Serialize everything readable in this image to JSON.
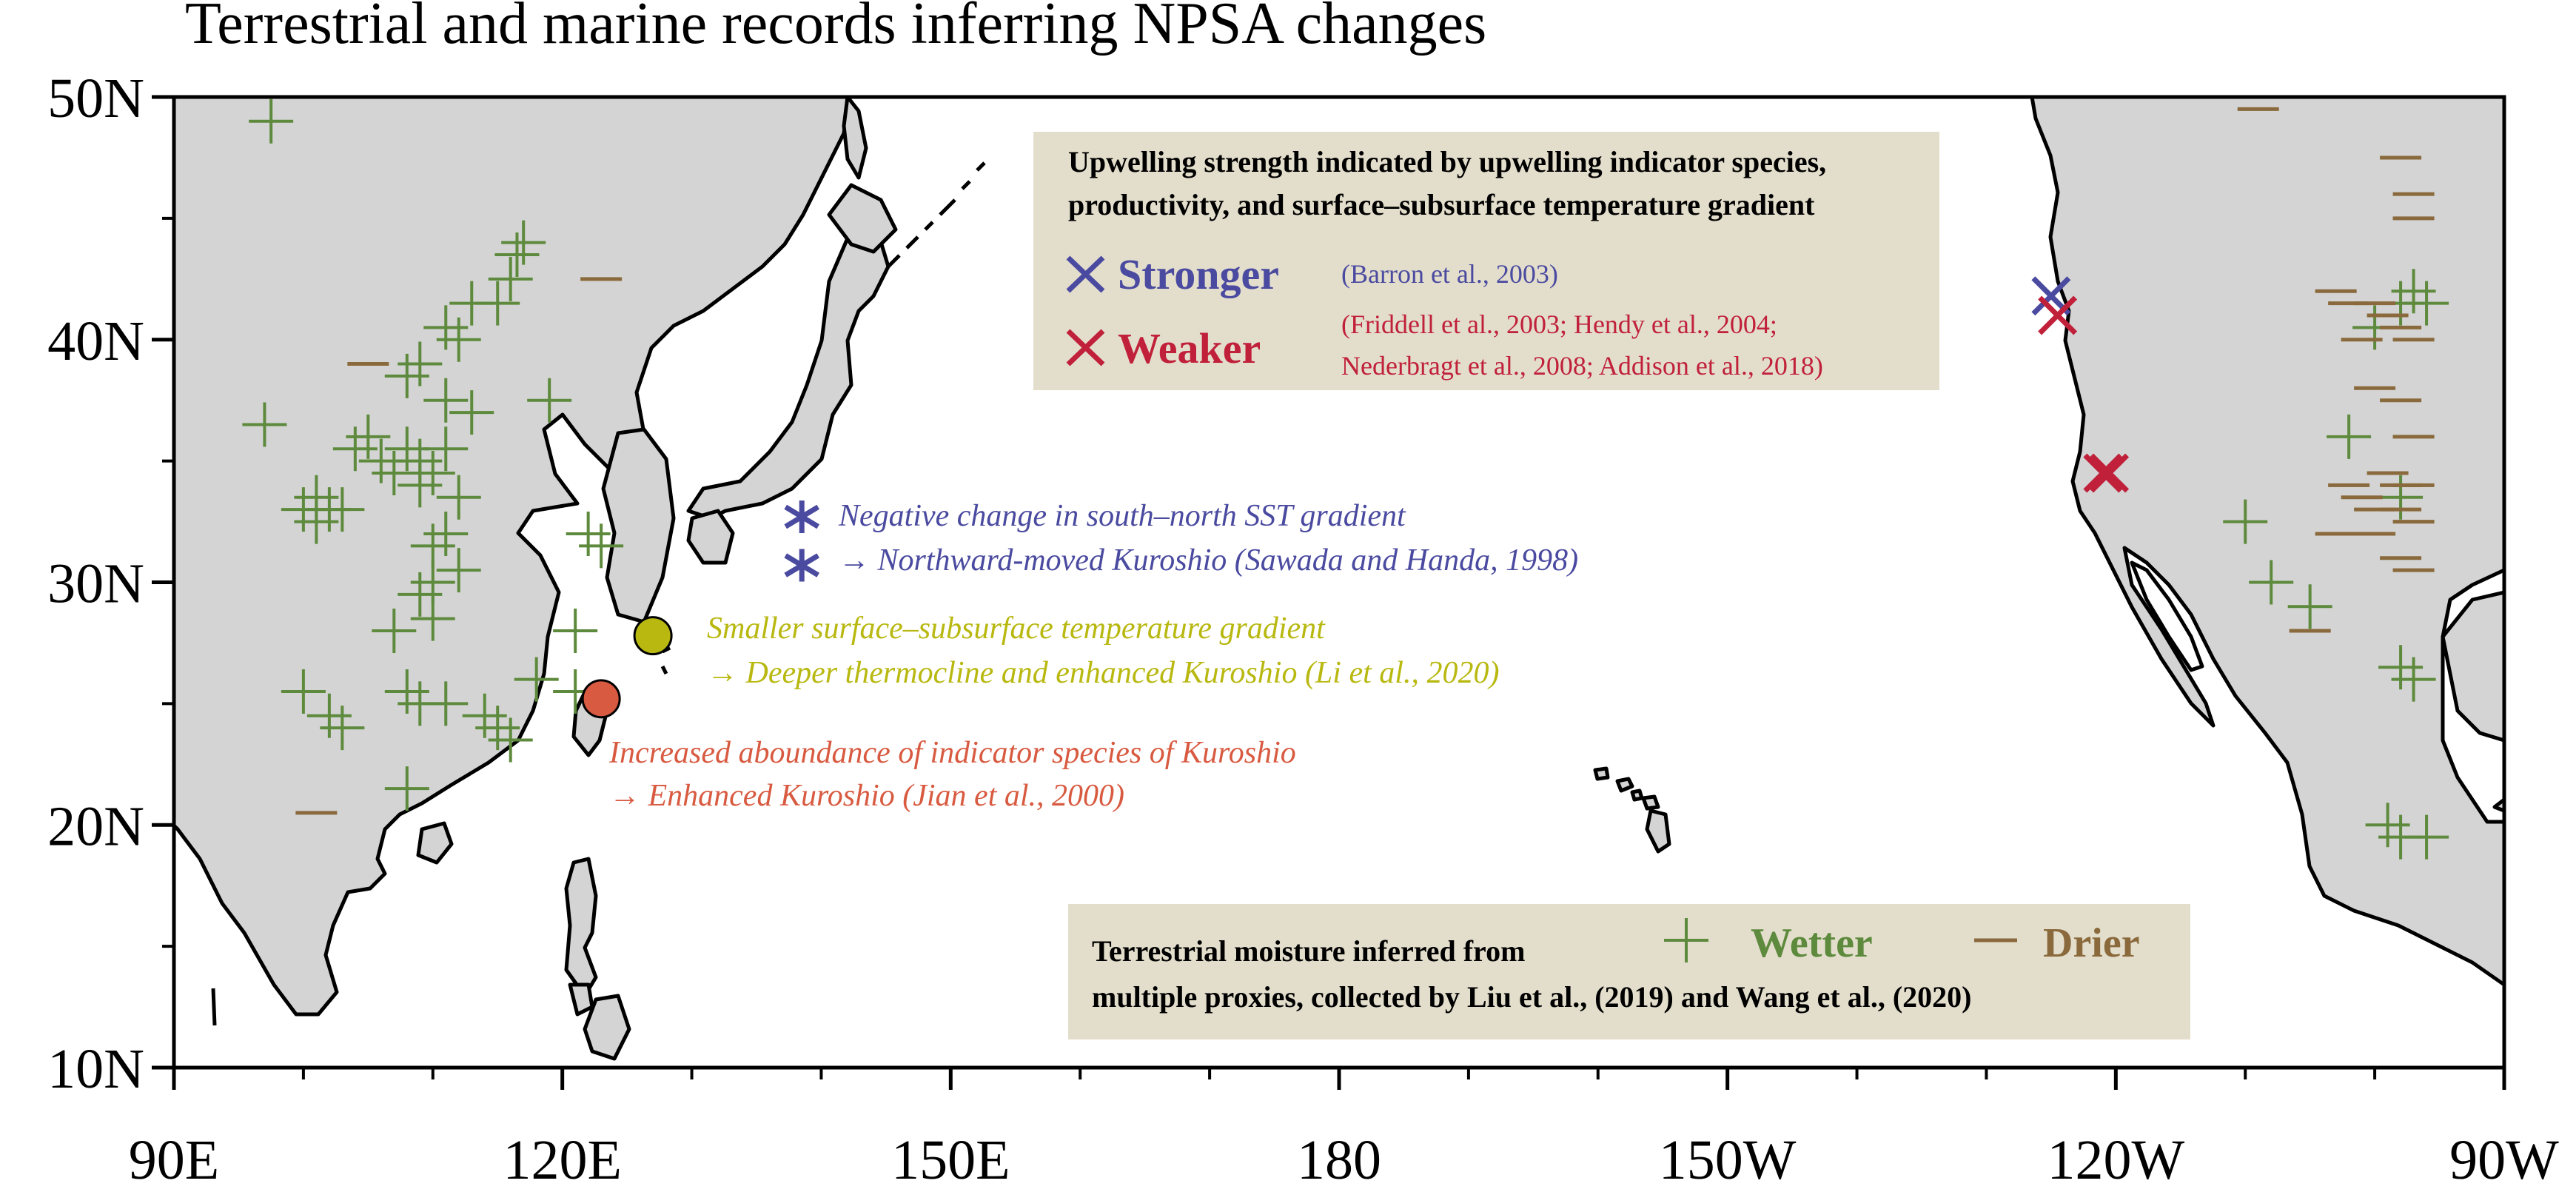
{
  "title": "Terrestrial and marine records inferring NPSA changes",
  "axes": {
    "x_ticks": [
      {
        "lon": 90,
        "label": "90E"
      },
      {
        "lon": 120,
        "label": "120E"
      },
      {
        "lon": 150,
        "label": "150E"
      },
      {
        "lon": 180,
        "label": "180"
      },
      {
        "lon": 210,
        "label": "150W"
      },
      {
        "lon": 240,
        "label": "120W"
      },
      {
        "lon": 270,
        "label": "90W"
      }
    ],
    "y_ticks": [
      {
        "lat": 50,
        "label": "50N"
      },
      {
        "lat": 40,
        "label": "40N"
      },
      {
        "lat": 30,
        "label": "30N"
      },
      {
        "lat": 20,
        "label": "20N"
      },
      {
        "lat": 10,
        "label": "10N"
      }
    ],
    "lon_range": [
      90,
      270
    ],
    "lat_range": [
      10,
      50
    ]
  },
  "colors": {
    "land": "#d4d4d4",
    "coast": "#000000",
    "wetter": "#5d8a3c",
    "drier": "#8a6a3c",
    "stronger": "#4a4aa0",
    "weaker": "#c0203a",
    "legend_box": "#e3decc",
    "li2020": "#b8b810",
    "jian2000": "#d85a40"
  },
  "upwelling_legend": {
    "title_line1": "Upwelling strength indicated by upwelling indicator species,",
    "title_line2": "productivity, and surface–subsurface temperature gradient",
    "stronger_label": "Stronger",
    "stronger_ref": "(Barron et al., 2003)",
    "weaker_label": "Weaker",
    "weaker_ref_line1": "(Friddell et al., 2003; Hendy et al., 2004;",
    "weaker_ref_line2": "Nederbragt et al., 2008; Addison et al., 2018)"
  },
  "moisture_legend": {
    "line1": "Terrestrial moisture inferred from",
    "line2": "multiple proxies, collected by Liu et al., (2019) and Wang et al., (2020)",
    "wetter_label": "Wetter",
    "drier_label": "Drier"
  },
  "annotations": {
    "sawada_line1": "Negative change in south–north SST gradient",
    "sawada_line2": "→ Northward-moved Kuroshio  (Sawada and Handa, 1998)",
    "li_line1": "Smaller surface–subsurface temperature gradient",
    "li_line2": "→ Deeper thermocline and enhanced Kuroshio (Li et al., 2020)",
    "jian_line1": "Increased aboundance of indicator species of Kuroshio",
    "jian_line2": "→ Enhanced Kuroshio (Jian et al., 2000)"
  },
  "markers": {
    "wetter": [
      [
        97.5,
        49
      ],
      [
        116.5,
        43.5
      ],
      [
        116,
        42.5
      ],
      [
        117,
        44
      ],
      [
        115,
        41.5
      ],
      [
        113,
        41.5
      ],
      [
        111,
        40.5
      ],
      [
        112,
        40
      ],
      [
        109,
        39
      ],
      [
        108,
        38.5
      ],
      [
        111,
        37.5
      ],
      [
        113,
        37
      ],
      [
        119,
        37.5
      ],
      [
        97,
        36.5
      ],
      [
        104,
        35.5
      ],
      [
        105,
        36
      ],
      [
        106,
        35
      ],
      [
        108,
        35.5
      ],
      [
        109,
        35
      ],
      [
        110,
        34.5
      ],
      [
        111,
        35.5
      ],
      [
        107,
        34.5
      ],
      [
        109,
        34
      ],
      [
        112,
        33.5
      ],
      [
        100,
        33
      ],
      [
        101,
        33.5
      ],
      [
        102,
        33
      ],
      [
        103,
        33
      ],
      [
        101,
        32.5
      ],
      [
        110,
        31.5
      ],
      [
        111,
        32
      ],
      [
        112,
        30.5
      ],
      [
        110,
        30
      ],
      [
        109,
        29.5
      ],
      [
        110,
        28.5
      ],
      [
        107,
        28
      ],
      [
        122,
        32
      ],
      [
        123,
        31.5
      ],
      [
        121,
        28
      ],
      [
        108,
        25.5
      ],
      [
        109,
        25
      ],
      [
        111,
        25
      ],
      [
        114,
        24.5
      ],
      [
        115,
        24
      ],
      [
        118,
        26
      ],
      [
        121,
        25.5
      ],
      [
        100,
        25.5
      ],
      [
        102,
        24.5
      ],
      [
        103,
        24
      ],
      [
        116,
        23.5
      ],
      [
        108,
        21.5
      ],
      [
        250,
        32.5
      ],
      [
        252,
        30
      ],
      [
        255,
        29
      ],
      [
        258,
        36
      ],
      [
        260,
        40.5
      ],
      [
        262,
        41.5
      ],
      [
        263,
        42
      ],
      [
        264,
        41.5
      ],
      [
        262,
        33.5
      ],
      [
        262,
        26.5
      ],
      [
        263,
        26
      ],
      [
        261,
        20
      ],
      [
        262,
        19.5
      ],
      [
        264,
        19.5
      ]
    ],
    "drier": [
      [
        105,
        39
      ],
      [
        123,
        42.5
      ],
      [
        101,
        20.5
      ],
      [
        251,
        49.5
      ],
      [
        262,
        47.5
      ],
      [
        263,
        46
      ],
      [
        263,
        45
      ],
      [
        257,
        42
      ],
      [
        258,
        41.5
      ],
      [
        260,
        41.5
      ],
      [
        261,
        41
      ],
      [
        262,
        40.5
      ],
      [
        263,
        40
      ],
      [
        259,
        40
      ],
      [
        260,
        38
      ],
      [
        262,
        37.5
      ],
      [
        263,
        36
      ],
      [
        258,
        34
      ],
      [
        259,
        33.5
      ],
      [
        260,
        33
      ],
      [
        261,
        34.5
      ],
      [
        262,
        34
      ],
      [
        263,
        34
      ],
      [
        262,
        33
      ],
      [
        263,
        32.5
      ],
      [
        257,
        32
      ],
      [
        260,
        32
      ],
      [
        262,
        31
      ],
      [
        263,
        30.5
      ],
      [
        255,
        28
      ]
    ],
    "stronger_x": [
      [
        235,
        41.8
      ]
    ],
    "weaker_x": [
      [
        235.5,
        41
      ],
      [
        239,
        34.5
      ],
      [
        239.5,
        34.5
      ]
    ],
    "sawada_asterisks": [
      [
        138.5,
        32.7
      ],
      [
        138.5,
        30.7
      ]
    ],
    "li_point": [
      127,
      27.8
    ],
    "jian_point": [
      123,
      25.2
    ]
  }
}
